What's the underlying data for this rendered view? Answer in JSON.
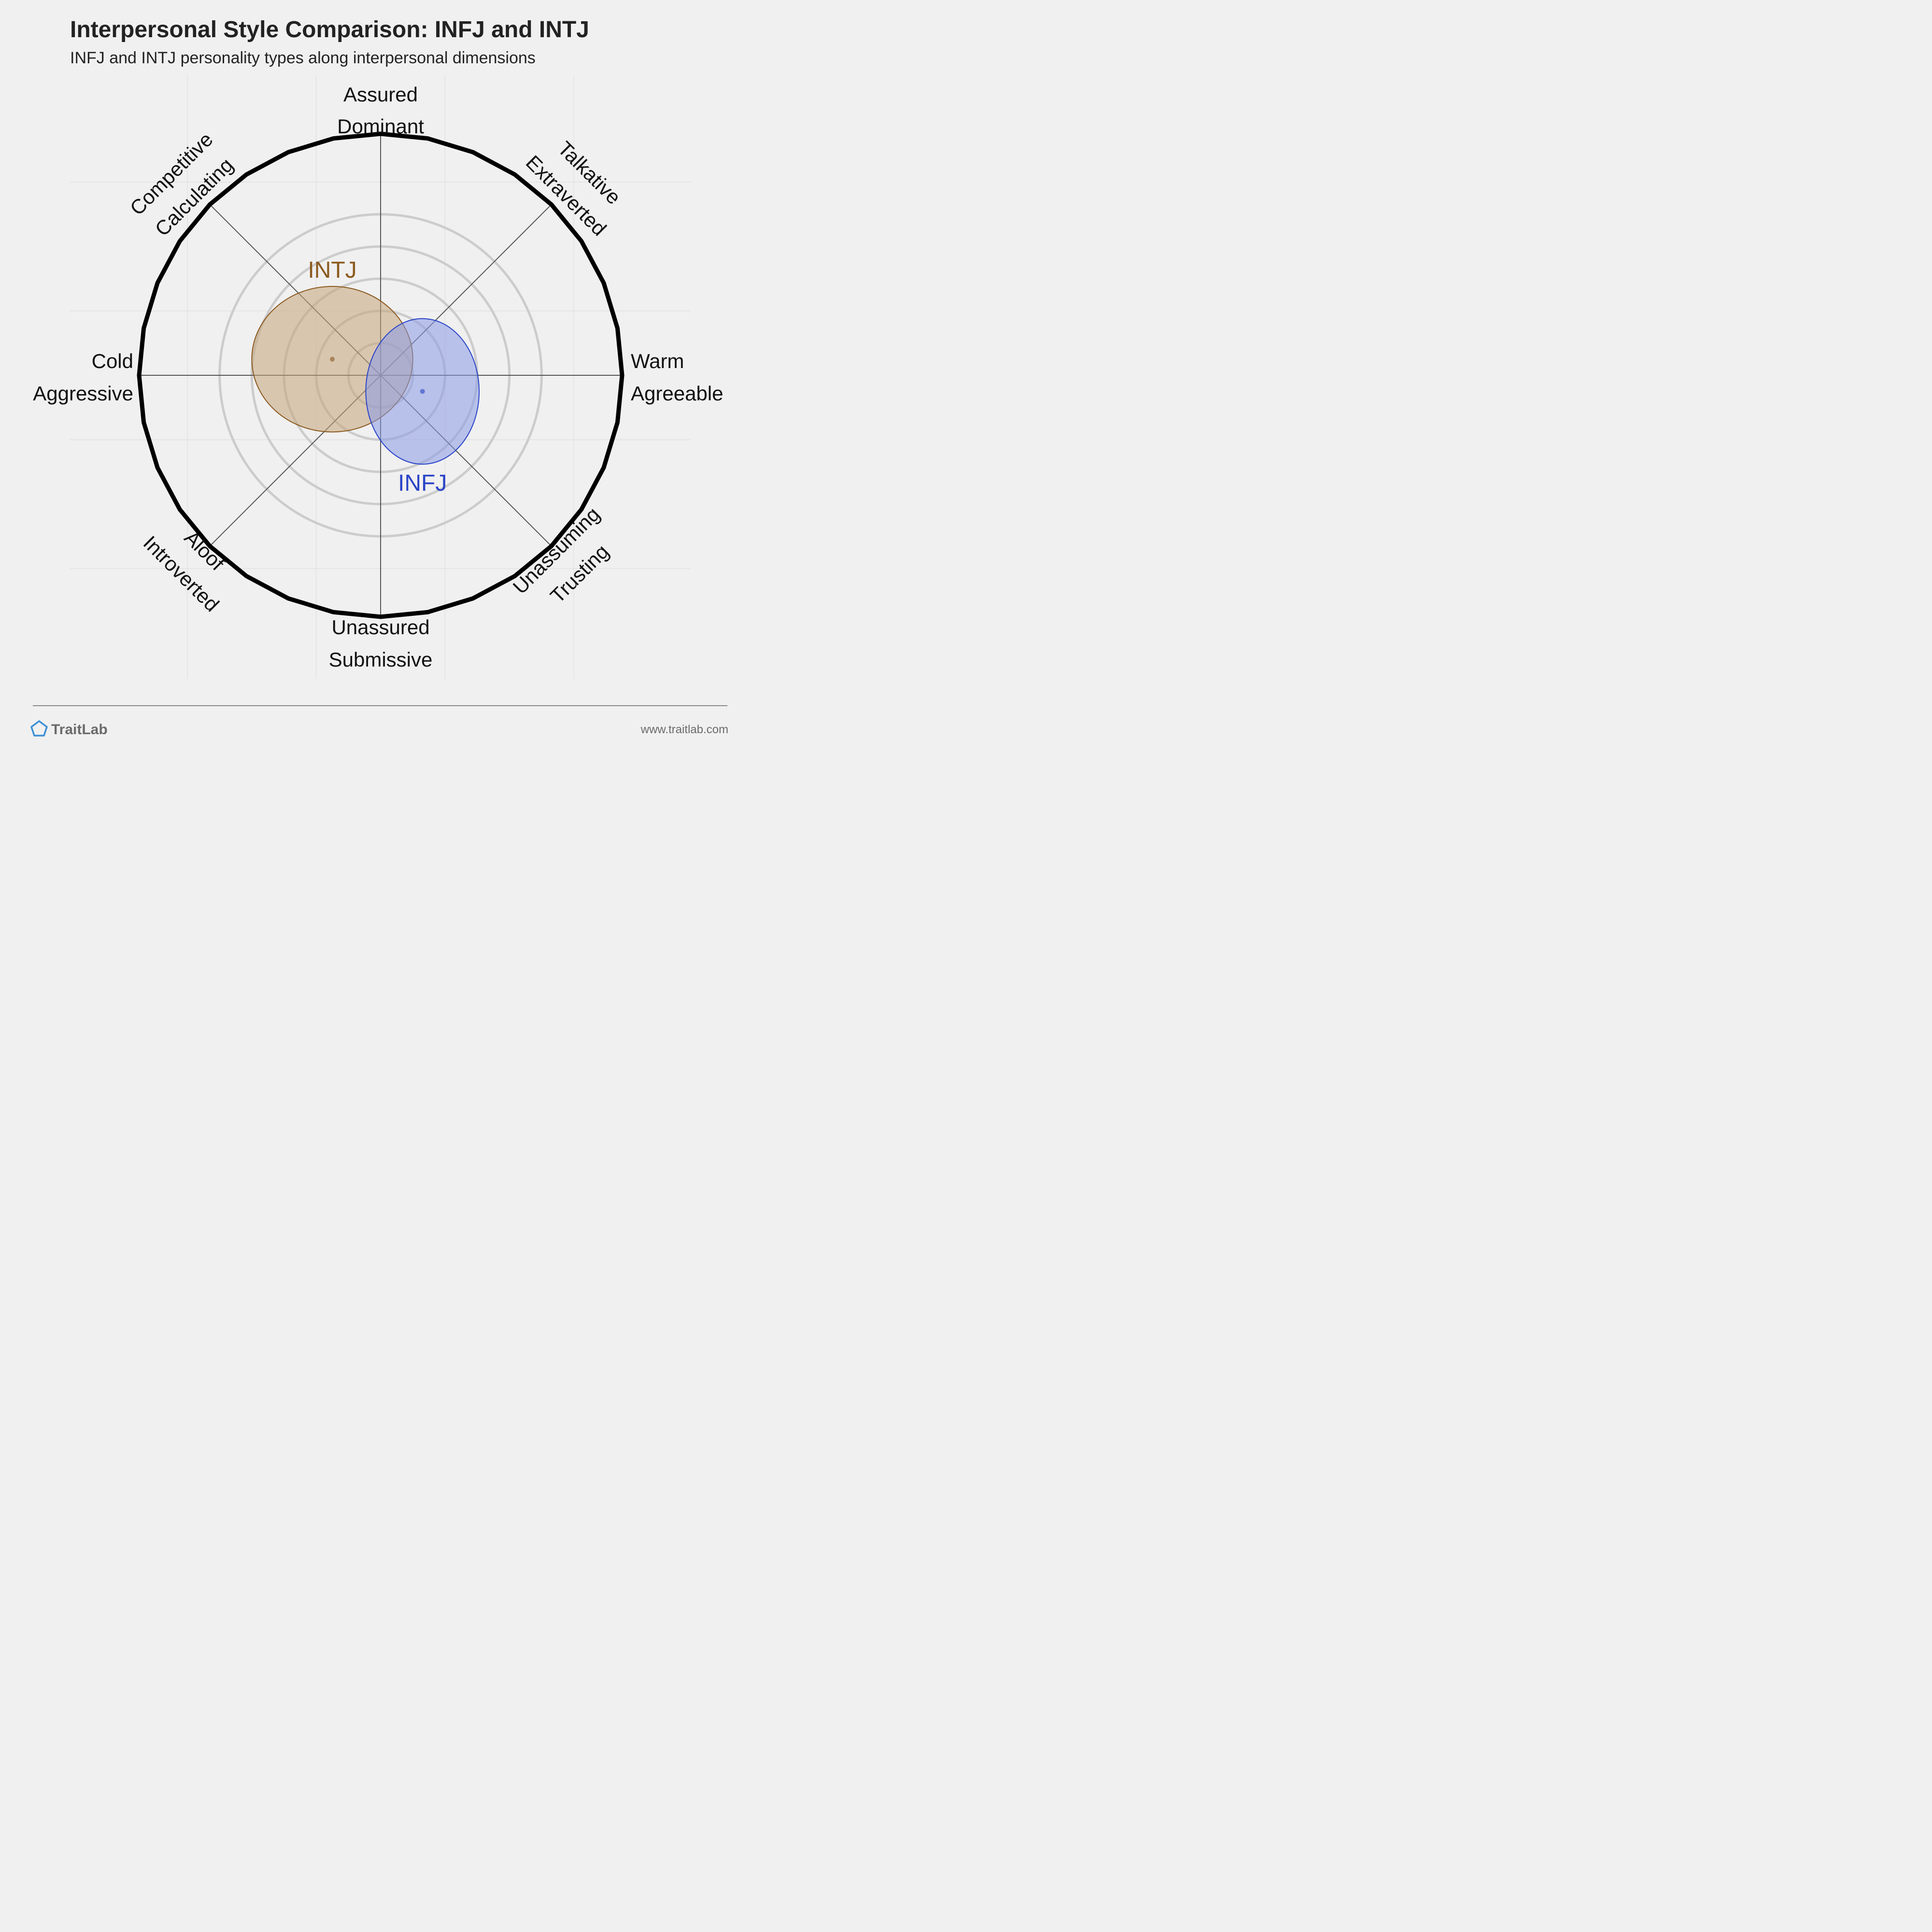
{
  "chart_data": {
    "type": "scatter",
    "subtype": "interpersonal-circumplex",
    "title": "Interpersonal Style Comparison: INFJ and INTJ",
    "subtitle": "INFJ and INTJ personality types along interpersonal dimensions",
    "xlim": [
      -3,
      3
    ],
    "ylim": [
      -3,
      3
    ],
    "rings": [
      0.5,
      1,
      1.5,
      2,
      2.5
    ],
    "grid": true,
    "axis_labels": {
      "top": [
        "Assured",
        "Dominant"
      ],
      "bottom": [
        "Unassured",
        "Submissive"
      ],
      "left": [
        "Cold",
        "Aggressive"
      ],
      "right": [
        "Warm",
        "Agreeable"
      ],
      "top_left": [
        "Competitive",
        "Calculating"
      ],
      "top_right": [
        "Talkative",
        "Extraverted"
      ],
      "bottom_left": [
        "Aloof",
        "Introverted"
      ],
      "bottom_right": [
        "Unassuming",
        "Trusting"
      ]
    },
    "series": [
      {
        "name": "INTJ",
        "color": "#8b5a1f",
        "fill": "#c4a47a",
        "x": -0.75,
        "y": 0.25,
        "spread_x": 1.25,
        "spread_y": 1.13
      },
      {
        "name": "INFJ",
        "color": "#2a44c8",
        "fill": "#8a9ae6",
        "x": 0.65,
        "y": -0.25,
        "spread_x": 0.88,
        "spread_y": 1.13
      }
    ]
  },
  "footer": {
    "brand": "TraitLab",
    "brand_icon": "pentagon-icon",
    "website": "www.traitlab.com"
  }
}
